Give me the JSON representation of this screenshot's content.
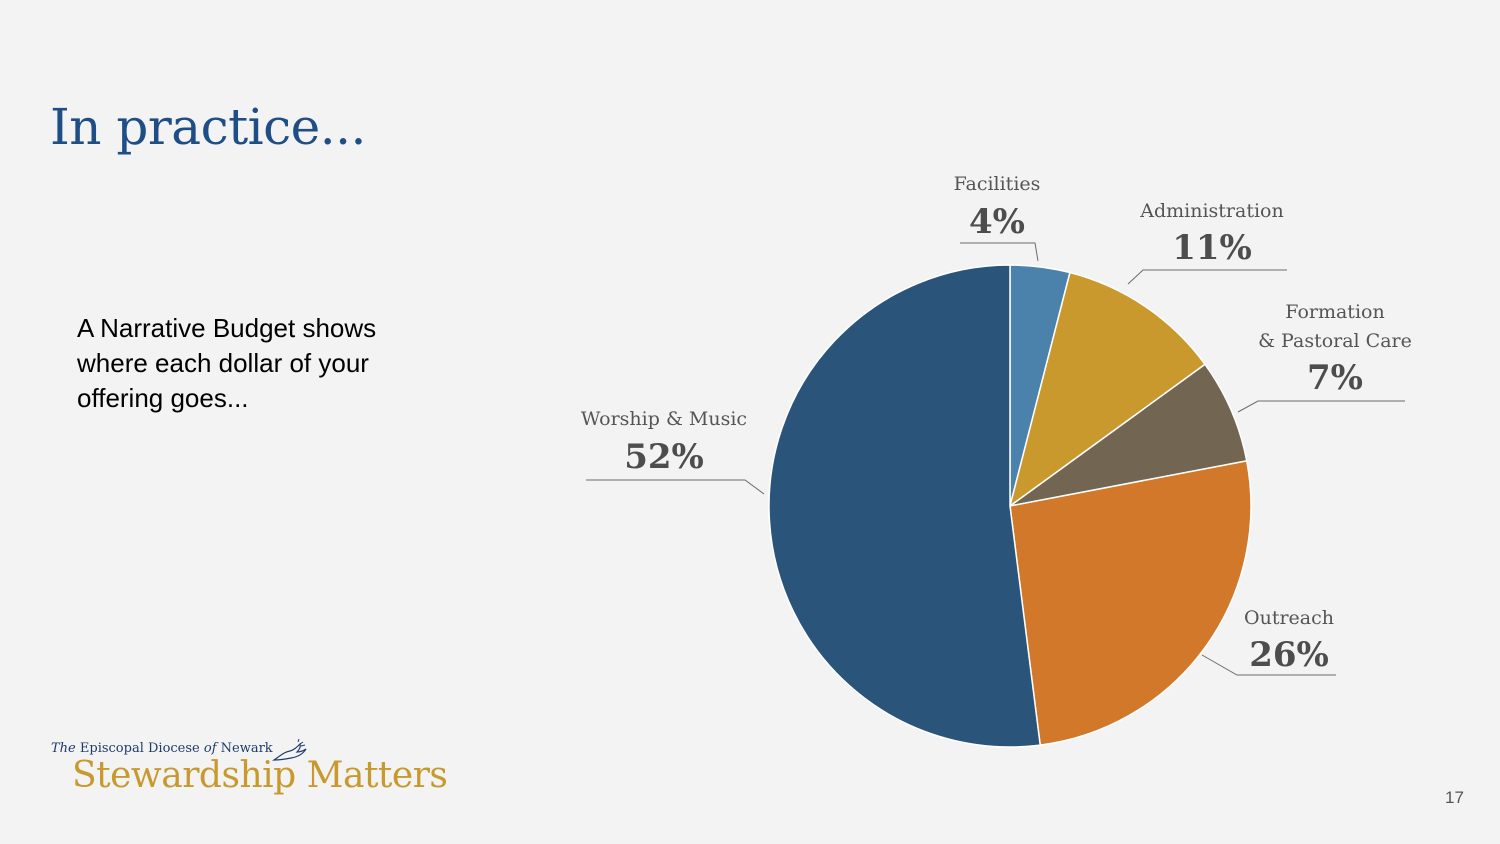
{
  "slide": {
    "title": "In practice...",
    "body": "A Narrative Budget shows where each dollar of your offering goes...",
    "page_number": "17"
  },
  "logo": {
    "org_prefix_the": "The",
    "org_prefix_mid": " Episcopal Diocese ",
    "org_prefix_of": "of",
    "org_prefix_end": " Newark",
    "name": "Stewardship Matters",
    "icon": "dove-icon"
  },
  "chart_data": {
    "type": "pie",
    "start_angle_deg": 0,
    "direction": "clockwise",
    "slices": [
      {
        "label": "Facilities",
        "value": 4,
        "display": "4%",
        "color": "#4a82ab"
      },
      {
        "label": "Administration",
        "value": 11,
        "display": "11%",
        "color": "#c9992e"
      },
      {
        "label": "Formation\n& Pastoral Care",
        "value": 7,
        "display": "7%",
        "color": "#726552"
      },
      {
        "label": "Outreach",
        "value": 26,
        "display": "26%",
        "color": "#d2782b"
      },
      {
        "label": "Worship & Music",
        "value": 52,
        "display": "52%",
        "color": "#2a5479"
      }
    ]
  }
}
